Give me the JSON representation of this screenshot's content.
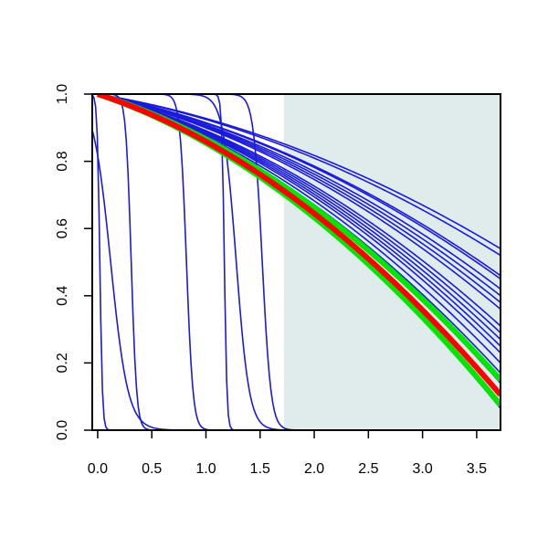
{
  "chart_data": {
    "type": "line",
    "title": "",
    "xlabel": "",
    "ylabel": "",
    "xlim": [
      -0.05,
      3.72
    ],
    "ylim": [
      0,
      1
    ],
    "x_ticks": [
      0.0,
      0.5,
      1.0,
      1.5,
      2.0,
      2.5,
      3.0,
      3.5
    ],
    "x_tick_labels": [
      "0.0",
      "0.5",
      "1.0",
      "1.5",
      "2.0",
      "2.5",
      "3.0",
      "3.5"
    ],
    "y_ticks": [
      0.0,
      0.2,
      0.4,
      0.6,
      0.8,
      1.0
    ],
    "y_tick_labels": [
      "0.0",
      "0.2",
      "0.4",
      "0.6",
      "0.8",
      "1.0"
    ],
    "grid": false,
    "legend": "none",
    "shaded_region": {
      "x_from": 1.72,
      "x_to": 3.72,
      "color": "#e0ecec"
    },
    "colors": {
      "blue": "#1a1adb",
      "red": "#ff0000",
      "green": "#00e600"
    },
    "series": [
      {
        "color": "blue",
        "kind": "step",
        "t0": 0.02,
        "w": 0.012
      },
      {
        "color": "blue",
        "kind": "step",
        "t0": 0.12,
        "w": 0.08
      },
      {
        "color": "blue",
        "kind": "step",
        "t0": 0.31,
        "w": 0.025
      },
      {
        "color": "blue",
        "kind": "step",
        "t0": 0.82,
        "w": 0.03
      },
      {
        "color": "blue",
        "kind": "step",
        "t0": 1.17,
        "w": 0.012
      },
      {
        "color": "blue",
        "kind": "step",
        "t0": 1.28,
        "w": 0.06
      },
      {
        "color": "blue",
        "kind": "step",
        "t0": 1.52,
        "w": 0.04
      },
      {
        "color": "blue",
        "kind": "smooth",
        "end": 0.54
      },
      {
        "color": "blue",
        "kind": "smooth",
        "end": 0.52
      },
      {
        "color": "blue",
        "kind": "smooth",
        "end": 0.46
      },
      {
        "color": "blue",
        "kind": "smooth",
        "end": 0.45
      },
      {
        "color": "blue",
        "kind": "smooth",
        "end": 0.42
      },
      {
        "color": "blue",
        "kind": "smooth",
        "end": 0.4
      },
      {
        "color": "blue",
        "kind": "smooth",
        "end": 0.38
      },
      {
        "color": "blue",
        "kind": "smooth",
        "end": 0.36
      },
      {
        "color": "blue",
        "kind": "smooth",
        "end": 0.31
      },
      {
        "color": "blue",
        "kind": "smooth",
        "end": 0.29
      },
      {
        "color": "blue",
        "kind": "smooth",
        "end": 0.27
      },
      {
        "color": "blue",
        "kind": "smooth",
        "end": 0.25
      },
      {
        "color": "blue",
        "kind": "smooth",
        "end": 0.23
      },
      {
        "color": "blue",
        "kind": "smooth",
        "end": 0.2
      },
      {
        "color": "blue",
        "kind": "smooth",
        "end": 0.17
      },
      {
        "color": "blue",
        "kind": "smooth",
        "end": 0.14
      },
      {
        "color": "blue",
        "kind": "smooth",
        "end": 0.065
      },
      {
        "color": "green",
        "kind": "smooth",
        "end": 0.15,
        "bold": true
      },
      {
        "color": "green",
        "kind": "smooth",
        "end": 0.075,
        "bold": true
      },
      {
        "color": "red",
        "kind": "smooth",
        "end": 0.105,
        "bold": true
      }
    ]
  }
}
